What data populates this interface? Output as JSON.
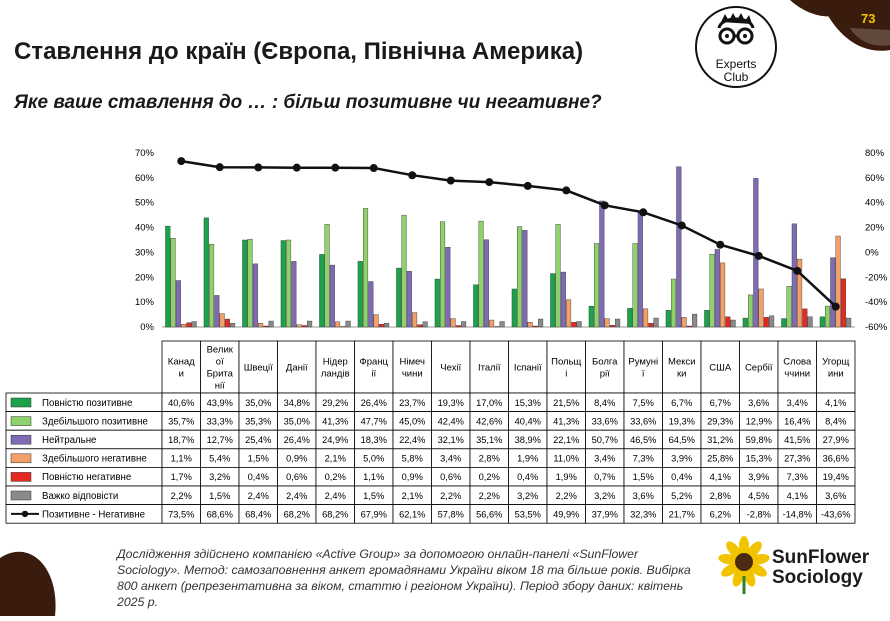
{
  "header": {
    "title": "Ставлення до країн (Європа, Північна Америка)",
    "subtitle": "Яке ваше ставлення до … : більш позитивне чи негативне?",
    "page_number": "73",
    "badge_text_1": "Experts",
    "badge_text_2": "Club"
  },
  "footer": {
    "footnote": "Дослідження здійснено компанією «Active Group» за допомогою онлайн-панелі «SunFlower Sociology». Метод: самозаповнення анкет громадянами України віком 18 та більше років. Вибірка 800 анкет (репрезентативна за віком, статтю і регіоном України). Період збору даних: квітень 2025 р.",
    "brand_line1": "SunFlower",
    "brand_line2": "Sociology"
  },
  "colors": {
    "bar_colors": [
      "#1aa34a",
      "#8fd16a",
      "#7f6bb3",
      "#f0a068",
      "#e52a24",
      "#8a8a8a"
    ],
    "line": "#111111",
    "corner_petals": "#3a1c0e"
  },
  "chart_data": {
    "type": "bar",
    "categories": [
      "Канади",
      "Великої Британії",
      "Швеції",
      "Данії",
      "Нідерландів",
      "Франції",
      "Німеччини",
      "Чехії",
      "Італії",
      "Іспанії",
      "Польщі",
      "Болгарії",
      "Румунії",
      "Мексики",
      "США",
      "Сербії",
      "Словаччини",
      "Угорщини"
    ],
    "category_labels": [
      [
        "Канад",
        "и"
      ],
      [
        "Велик",
        "ої",
        "Брита",
        "нії"
      ],
      [
        "Швеції"
      ],
      [
        "Данії"
      ],
      [
        "Нідер",
        "ландів"
      ],
      [
        "Франц",
        "ії"
      ],
      [
        "Німеч",
        "чини"
      ],
      [
        "Чехії"
      ],
      [
        "Італії"
      ],
      [
        "Іспанії"
      ],
      [
        "Польщ",
        "і"
      ],
      [
        "Болга",
        "рії"
      ],
      [
        "Румуні",
        "ї"
      ],
      [
        "Мекси",
        "ки"
      ],
      [
        "США"
      ],
      [
        "Сербії"
      ],
      [
        "Слова",
        "ччини"
      ],
      [
        "Угорщ",
        "ини"
      ]
    ],
    "y_left": {
      "min": 0,
      "max": 70,
      "step": 10,
      "unit": "%"
    },
    "y_right": {
      "min": -60,
      "max": 80,
      "step": 20,
      "unit": "%"
    },
    "series": [
      {
        "name": "Повністю позитивне",
        "axis": "left",
        "values": [
          40.6,
          43.9,
          35.0,
          34.8,
          29.2,
          26.4,
          23.7,
          19.3,
          17.0,
          15.3,
          21.5,
          8.4,
          7.5,
          6.7,
          6.7,
          3.6,
          3.4,
          4.1
        ],
        "labels": [
          "40,6%",
          "43,9%",
          "35,0%",
          "34,8%",
          "29,2%",
          "26,4%",
          "23,7%",
          "19,3%",
          "17,0%",
          "15,3%",
          "21,5%",
          "8,4%",
          "7,5%",
          "6,7%",
          "6,7%",
          "3,6%",
          "3,4%",
          "4,1%"
        ]
      },
      {
        "name": "Здебільшого позитивне",
        "axis": "left",
        "values": [
          35.7,
          33.3,
          35.3,
          35.0,
          41.3,
          47.7,
          45.0,
          42.4,
          42.6,
          40.4,
          41.3,
          33.6,
          33.6,
          19.3,
          29.3,
          12.9,
          16.4,
          8.4
        ],
        "labels": [
          "35,7%",
          "33,3%",
          "35,3%",
          "35,0%",
          "41,3%",
          "47,7%",
          "45,0%",
          "42,4%",
          "42,6%",
          "40,4%",
          "41,3%",
          "33,6%",
          "33,6%",
          "19,3%",
          "29,3%",
          "12,9%",
          "16,4%",
          "8,4%"
        ]
      },
      {
        "name": "Нейтральне",
        "axis": "left",
        "values": [
          18.7,
          12.7,
          25.4,
          26.4,
          24.9,
          18.3,
          22.4,
          32.1,
          35.1,
          38.9,
          22.1,
          50.7,
          46.5,
          64.5,
          31.2,
          59.8,
          41.5,
          27.9
        ],
        "labels": [
          "18,7%",
          "12,7%",
          "25,4%",
          "26,4%",
          "24,9%",
          "18,3%",
          "22,4%",
          "32,1%",
          "35,1%",
          "38,9%",
          "22,1%",
          "50,7%",
          "46,5%",
          "64,5%",
          "31,2%",
          "59,8%",
          "41,5%",
          "27,9%"
        ]
      },
      {
        "name": "Здебільшого негативне",
        "axis": "left",
        "values": [
          1.1,
          5.4,
          1.5,
          0.9,
          2.1,
          5.0,
          5.8,
          3.4,
          2.8,
          1.9,
          11.0,
          3.4,
          7.3,
          3.9,
          25.8,
          15.3,
          27.3,
          36.6
        ],
        "labels": [
          "1,1%",
          "5,4%",
          "1,5%",
          "0,9%",
          "2,1%",
          "5,0%",
          "5,8%",
          "3,4%",
          "2,8%",
          "1,9%",
          "11,0%",
          "3,4%",
          "7,3%",
          "3,9%",
          "25,8%",
          "15,3%",
          "27,3%",
          "36,6%"
        ]
      },
      {
        "name": "Повністю негативне",
        "axis": "left",
        "values": [
          1.7,
          3.2,
          0.4,
          0.6,
          0.2,
          1.1,
          0.9,
          0.6,
          0.2,
          0.4,
          1.9,
          0.7,
          1.5,
          0.4,
          4.1,
          3.9,
          7.3,
          19.4
        ],
        "labels": [
          "1,7%",
          "3,2%",
          "0,4%",
          "0,6%",
          "0,2%",
          "1,1%",
          "0,9%",
          "0,6%",
          "0,2%",
          "0,4%",
          "1,9%",
          "0,7%",
          "1,5%",
          "0,4%",
          "4,1%",
          "3,9%",
          "7,3%",
          "19,4%"
        ]
      },
      {
        "name": "Важко відповісти",
        "axis": "left",
        "values": [
          2.2,
          1.5,
          2.4,
          2.4,
          2.4,
          1.5,
          2.1,
          2.2,
          2.2,
          3.2,
          2.2,
          3.2,
          3.6,
          5.2,
          2.8,
          4.5,
          4.1,
          3.6
        ],
        "labels": [
          "2,2%",
          "1,5%",
          "2,4%",
          "2,4%",
          "2,4%",
          "1,5%",
          "2,1%",
          "2,2%",
          "2,2%",
          "3,2%",
          "2,2%",
          "3,2%",
          "3,6%",
          "5,2%",
          "2,8%",
          "4,5%",
          "4,1%",
          "3,6%"
        ]
      },
      {
        "name": "Позитивне - Негативне",
        "axis": "right",
        "type": "line",
        "values": [
          73.5,
          68.6,
          68.4,
          68.2,
          68.2,
          67.9,
          62.1,
          57.8,
          56.6,
          53.5,
          49.9,
          37.9,
          32.3,
          21.7,
          6.2,
          -2.8,
          -14.8,
          -43.6
        ],
        "labels": [
          "73,5%",
          "68,6%",
          "68,4%",
          "68,2%",
          "68,2%",
          "67,9%",
          "62,1%",
          "57,8%",
          "56,6%",
          "53,5%",
          "49,9%",
          "37,9%",
          "32,3%",
          "21,7%",
          "6,2%",
          "-2,8%",
          "-14,8%",
          "-43,6%"
        ]
      }
    ]
  }
}
